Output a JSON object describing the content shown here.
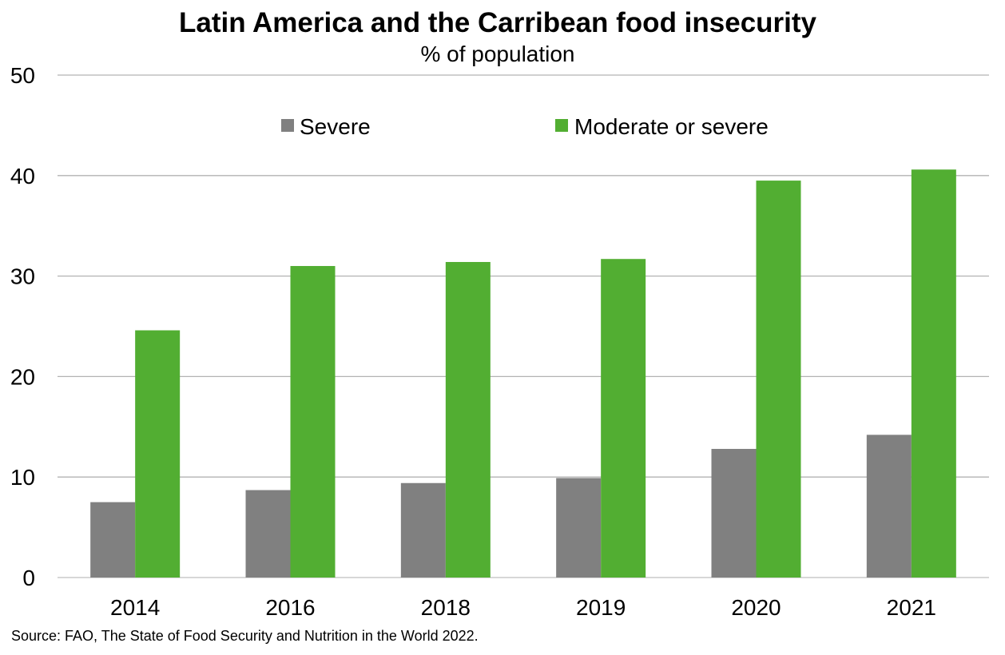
{
  "chart_data": {
    "type": "bar",
    "title": "Latin America and the Carribean food insecurity",
    "subtitle": "% of population",
    "xlabel": "",
    "ylabel": "",
    "categories": [
      "2014",
      "2016",
      "2018",
      "2019",
      "2020",
      "2021"
    ],
    "series": [
      {
        "name": "Severe",
        "color": "#808080",
        "values": [
          7.5,
          8.7,
          9.4,
          9.9,
          12.8,
          14.2
        ]
      },
      {
        "name": "Moderate or severe",
        "color": "#52AE32",
        "values": [
          24.6,
          31.0,
          31.4,
          31.7,
          39.5,
          40.6
        ]
      }
    ],
    "ylim": [
      0,
      50
    ],
    "yticks": [
      0,
      10,
      20,
      30,
      40,
      50
    ],
    "grid": true,
    "legend_position": "top-center"
  },
  "source": "Source: FAO, The State of Food Security and Nutrition in the World 2022."
}
